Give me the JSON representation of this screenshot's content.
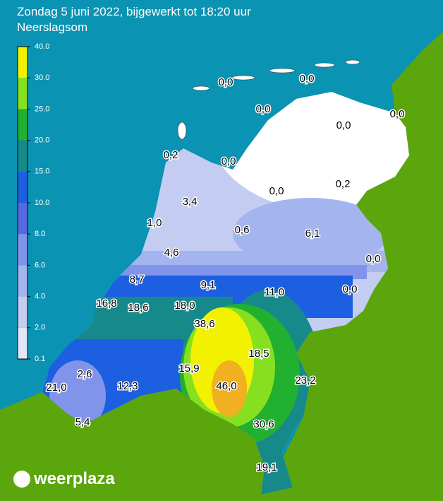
{
  "header": {
    "title": "Zondag 5 juni 2022, bijgewerkt tot 18:20 uur",
    "subtitle": "Neerslagsom"
  },
  "legend": {
    "ticks": [
      {
        "value": 40,
        "label": "40.0"
      },
      {
        "value": 30,
        "label": "30.0"
      },
      {
        "value": 25,
        "label": "25.0"
      },
      {
        "value": 20,
        "label": "20.0"
      },
      {
        "value": 15,
        "label": "15.0"
      },
      {
        "value": 10,
        "label": "10.0"
      },
      {
        "value": 8,
        "label": "8.0"
      },
      {
        "value": 6,
        "label": "6.0"
      },
      {
        "value": 4,
        "label": "4.0"
      },
      {
        "value": 2,
        "label": "2.0"
      },
      {
        "value": 0.1,
        "label": "0.1"
      }
    ],
    "colors": [
      "#f2f200",
      "#86e020",
      "#22b030",
      "#168a8a",
      "#1c5fe0",
      "#5868e0",
      "#8294ea",
      "#a4b4ee",
      "#c4ccf2",
      "#e2e6f8"
    ]
  },
  "readings": [
    "0,0",
    "0,0",
    "0,0",
    "0,0",
    "0,0",
    "0,2",
    "0,0",
    "0,0",
    "0,2",
    "3,4",
    "1,0",
    "0,6",
    "6,1",
    "4,6",
    "0,0",
    "8,7",
    "9,1",
    "11,0",
    "0,0",
    "16,8",
    "18,6",
    "18,0",
    "38,6",
    "18,5",
    "15,9",
    "2,6",
    "12,3",
    "46,0",
    "23,2",
    "21,0",
    "5,4",
    "30,6",
    "19,1"
  ],
  "brand": "weerplaza"
}
